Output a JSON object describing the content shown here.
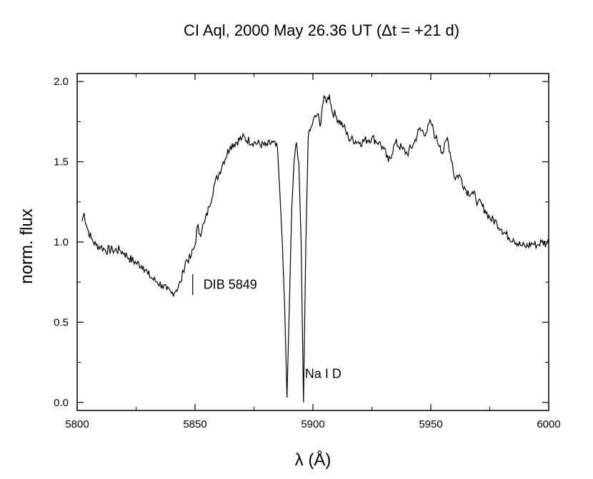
{
  "chart_data": {
    "type": "line",
    "title": "CI Aql, 2000 May 26.36 UT (Δt = +21 d)",
    "xlabel": "λ (Å)",
    "ylabel": "norm. flux",
    "xlim": [
      5800,
      6000
    ],
    "ylim": [
      -0.05,
      2.05
    ],
    "x_ticks": [
      5800,
      5850,
      5900,
      5950,
      6000
    ],
    "y_ticks": [
      0.0,
      0.5,
      1.0,
      1.5,
      2.0
    ],
    "x_tick_labels": [
      "5800",
      "5850",
      "5900",
      "5950",
      "6000"
    ],
    "y_tick_labels": [
      "0.0",
      "0.5",
      "1.0",
      "1.5",
      "2.0"
    ],
    "grid": false,
    "legend": "none",
    "line_color": "#000000",
    "series": [
      {
        "x": [
          5802,
          5803,
          5804,
          5806,
          5808,
          5810,
          5812,
          5815,
          5818,
          5820,
          5822,
          5825,
          5828,
          5830,
          5832,
          5834,
          5836,
          5838,
          5840,
          5842,
          5844,
          5845,
          5846,
          5848,
          5850,
          5851,
          5852,
          5854,
          5856,
          5858,
          5860,
          5862,
          5865,
          5870,
          5875,
          5880,
          5883,
          5885,
          5886,
          5887,
          5888,
          5889,
          5890,
          5891,
          5892,
          5893,
          5894,
          5895,
          5896,
          5897,
          5898,
          5900,
          5902,
          5903,
          5904,
          5905,
          5906,
          5907,
          5908,
          5910,
          5913,
          5915,
          5920,
          5925,
          5928,
          5930,
          5932,
          5935,
          5938,
          5940,
          5943,
          5945,
          5948,
          5950,
          5952,
          5954,
          5955,
          5957,
          5959,
          5960,
          5962,
          5965,
          5968,
          5970,
          5973,
          5975,
          5978,
          5980,
          5983,
          5985,
          5988,
          5990,
          5993,
          5995,
          5997,
          5999,
          6000
        ],
        "y": [
          1.13,
          1.18,
          1.1,
          1.02,
          0.98,
          0.97,
          0.95,
          0.95,
          0.95,
          0.93,
          0.9,
          0.87,
          0.85,
          0.8,
          0.77,
          0.75,
          0.73,
          0.7,
          0.68,
          0.7,
          0.75,
          0.82,
          0.88,
          0.9,
          0.98,
          1.1,
          1.05,
          1.12,
          1.22,
          1.35,
          1.42,
          1.5,
          1.6,
          1.65,
          1.62,
          1.6,
          1.62,
          1.58,
          1.3,
          1.0,
          0.6,
          0.03,
          0.6,
          1.2,
          1.5,
          1.62,
          1.5,
          1.0,
          0.0,
          1.0,
          1.65,
          1.75,
          1.8,
          1.72,
          1.85,
          1.9,
          1.88,
          1.92,
          1.82,
          1.78,
          1.72,
          1.65,
          1.62,
          1.65,
          1.62,
          1.58,
          1.5,
          1.62,
          1.58,
          1.55,
          1.62,
          1.7,
          1.68,
          1.75,
          1.65,
          1.6,
          1.55,
          1.65,
          1.5,
          1.4,
          1.42,
          1.32,
          1.3,
          1.25,
          1.2,
          1.15,
          1.12,
          1.08,
          1.03,
          1.02,
          0.98,
          0.97,
          0.99,
          0.98,
          1.0,
          0.99,
          1.0
        ]
      }
    ],
    "annotations": [
      {
        "text": "DIB 5849",
        "x": 5849,
        "y_low": 0.67,
        "y_high": 0.8
      },
      {
        "text": "Na I D",
        "x": 5893,
        "y": 0.18
      }
    ]
  }
}
